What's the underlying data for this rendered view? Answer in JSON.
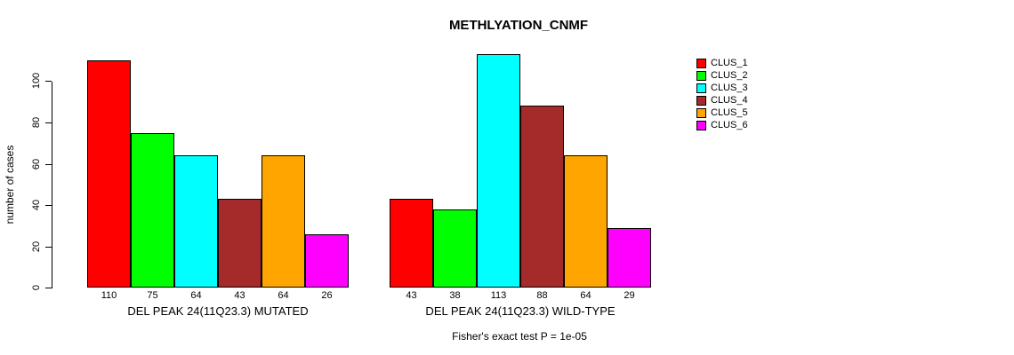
{
  "chart_data": {
    "type": "bar",
    "title": "METHLYATION_CNMF",
    "ylabel": "number of cases",
    "xlabel": "",
    "ylim": [
      0,
      116
    ],
    "yticks": [
      0,
      20,
      40,
      60,
      80,
      100
    ],
    "grid": false,
    "legend_position": "right",
    "legend": [
      {
        "label": "CLUS_1",
        "color": "#FF0000"
      },
      {
        "label": "CLUS_2",
        "color": "#00FF00"
      },
      {
        "label": "CLUS_3",
        "color": "#00FFFF"
      },
      {
        "label": "CLUS_4",
        "color": "#A52A2A"
      },
      {
        "label": "CLUS_5",
        "color": "#FFA500"
      },
      {
        "label": "CLUS_6",
        "color": "#FF00FF"
      }
    ],
    "bar_colors": [
      "#FF0000",
      "#00FF00",
      "#00FFFF",
      "#A52A2A",
      "#FFA500",
      "#FF00FF"
    ],
    "groups": [
      {
        "label": "DEL PEAK 24(11Q23.3) MUTATED",
        "values": [
          110,
          75,
          64,
          43,
          64,
          26
        ]
      },
      {
        "label": "DEL PEAK 24(11Q23.3) WILD-TYPE",
        "values": [
          43,
          38,
          113,
          88,
          64,
          29
        ]
      }
    ],
    "annotation": "Fisher's exact test P = 1e-05"
  }
}
